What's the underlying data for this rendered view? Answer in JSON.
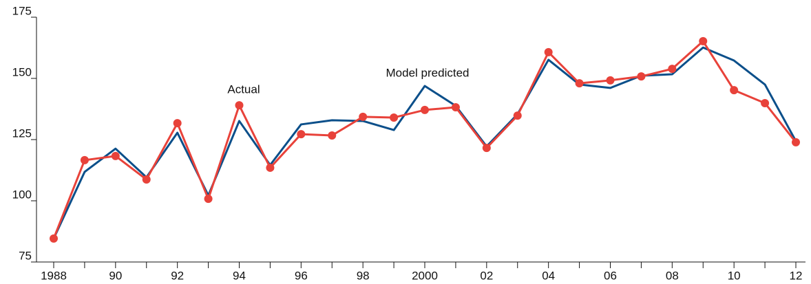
{
  "chart_data": {
    "type": "line",
    "x": [
      1988,
      1989,
      1990,
      1991,
      1992,
      1993,
      1994,
      1995,
      1996,
      1997,
      1998,
      1999,
      2000,
      2001,
      2002,
      2003,
      2004,
      2005,
      2006,
      2007,
      2008,
      2009,
      2010,
      2011,
      2012
    ],
    "series": [
      {
        "name": "Model predicted",
        "color": "#0b4f8a",
        "markers": false,
        "values": [
          84.6,
          111.8,
          121.3,
          109.6,
          127.8,
          102.2,
          132.6,
          114.6,
          131.2,
          132.9,
          132.6,
          128.9,
          146.9,
          138.8,
          122.2,
          135.4,
          157.6,
          147.5,
          146.1,
          151.1,
          151.7,
          162.6,
          157.3,
          147.5,
          124.4
        ]
      },
      {
        "name": "Actual",
        "color": "#e8423a",
        "markers": true,
        "values": [
          84.6,
          116.6,
          118.3,
          108.7,
          131.7,
          100.8,
          139.0,
          113.5,
          127.2,
          126.7,
          134.3,
          134.0,
          137.1,
          138.2,
          121.6,
          134.8,
          160.7,
          148.0,
          149.2,
          150.8,
          153.9,
          165.2,
          145.2,
          139.9,
          123.9
        ]
      }
    ],
    "xlim": [
      1988,
      2012
    ],
    "xticks": [
      {
        "value": 1988,
        "label": "1988"
      },
      {
        "value": 1990,
        "label": "90"
      },
      {
        "value": 1992,
        "label": "92"
      },
      {
        "value": 1994,
        "label": "94"
      },
      {
        "value": 1996,
        "label": "96"
      },
      {
        "value": 1998,
        "label": "98"
      },
      {
        "value": 2000,
        "label": "2000"
      },
      {
        "value": 2002,
        "label": "02"
      },
      {
        "value": 2004,
        "label": "04"
      },
      {
        "value": 2006,
        "label": "06"
      },
      {
        "value": 2008,
        "label": "08"
      },
      {
        "value": 2010,
        "label": "10"
      },
      {
        "value": 2012,
        "label": "12"
      }
    ],
    "minor_xticks": [
      1989,
      1991,
      1993,
      1995,
      1997,
      1999,
      2001,
      2003,
      2005,
      2007,
      2009,
      2011
    ],
    "ylim": [
      75,
      175
    ],
    "yticks": [
      75,
      100,
      125,
      150,
      175
    ],
    "grid": false
  }
}
